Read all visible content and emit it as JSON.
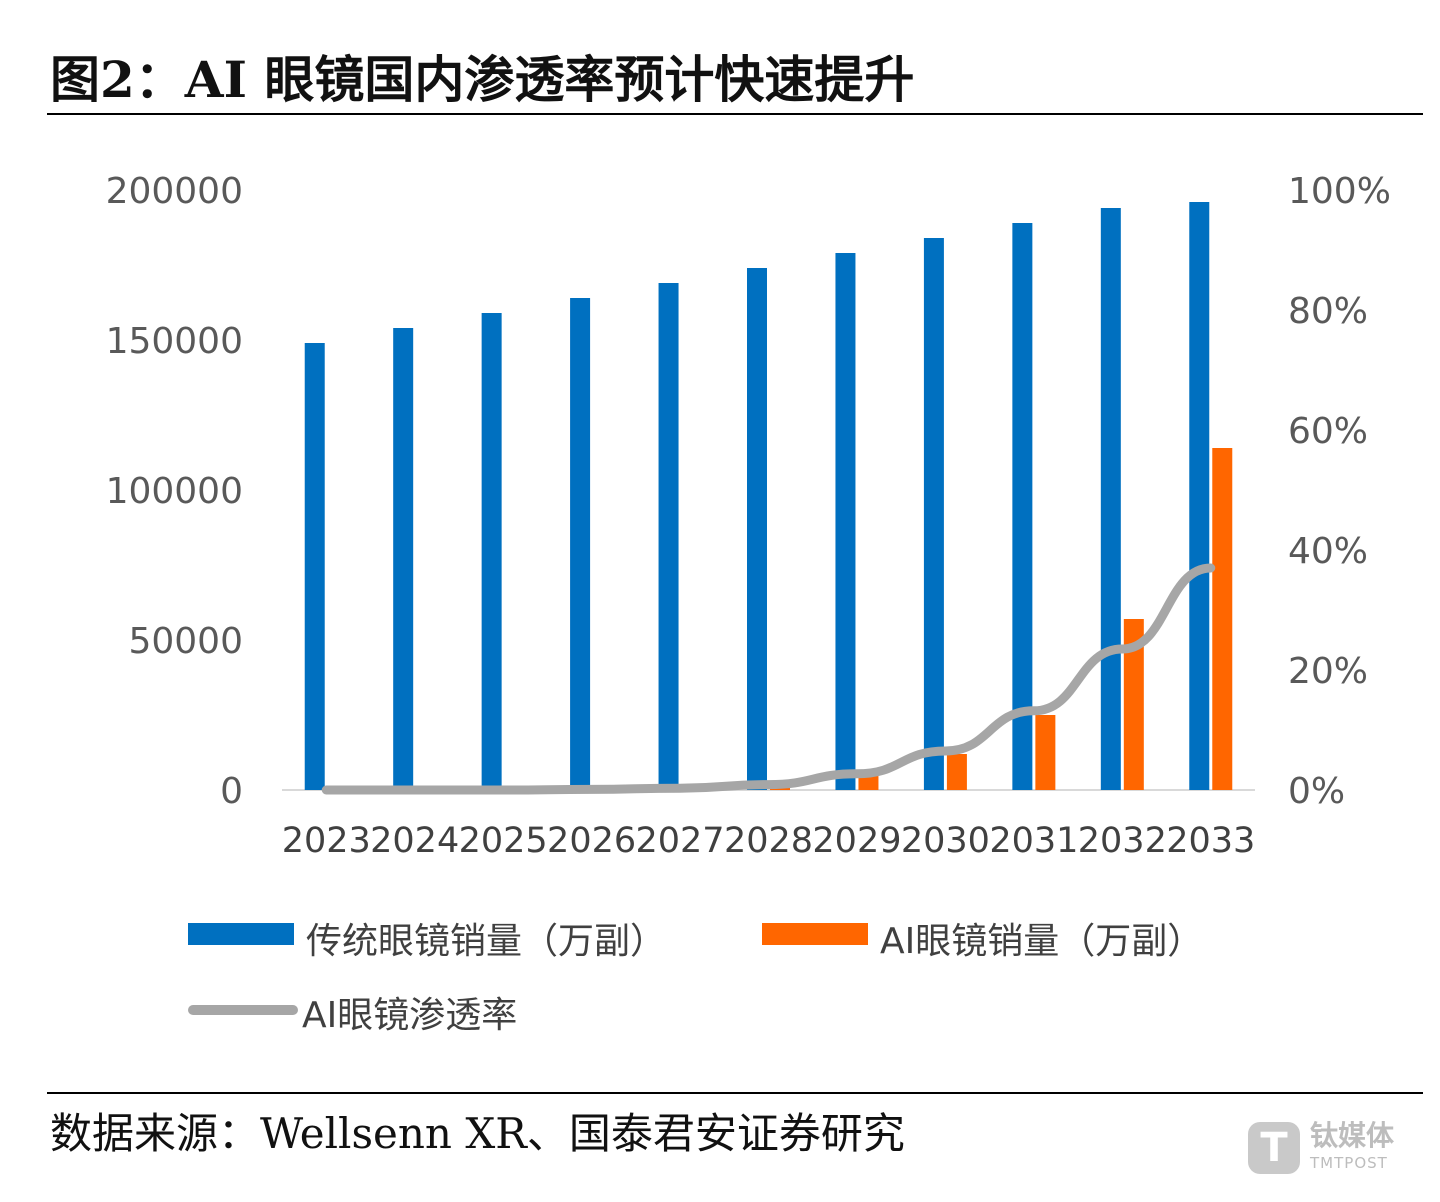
{
  "figure": {
    "title": "图2：AI 眼镜国内渗透率预计快速提升",
    "source": "数据来源：Wellsenn XR、国泰君安证券研究",
    "watermark": {
      "brand": "钛媒体",
      "brand_en": "TMTPOST",
      "logo_letter": "T"
    }
  },
  "colors": {
    "traditional": "#0070C0",
    "ai": "#FF6600",
    "rate": "#A6A6A6"
  },
  "chart_data": {
    "type": "bar",
    "title": "",
    "categories": [
      "2023",
      "2024",
      "2025",
      "2026",
      "2027",
      "2028",
      "2029",
      "2030",
      "2031",
      "2032",
      "2033"
    ],
    "series": [
      {
        "name": "传统眼镜销量（万副）",
        "kind": "bar",
        "axis": "left",
        "values": [
          149000,
          154000,
          159000,
          164000,
          169000,
          174000,
          179000,
          184000,
          189000,
          194000,
          196000
        ]
      },
      {
        "name": "AI眼镜销量（万副）",
        "kind": "bar",
        "axis": "left",
        "values": [
          0,
          0,
          0,
          100,
          500,
          1500,
          5000,
          12000,
          25000,
          57000,
          114000
        ]
      },
      {
        "name": "AI眼镜渗透率",
        "kind": "line",
        "axis": "right",
        "values": [
          0.0,
          0.0,
          0.0,
          0.001,
          0.003,
          0.009,
          0.027,
          0.065,
          0.132,
          0.235,
          0.37
        ]
      }
    ],
    "left_axis": {
      "min": 0,
      "max": 200000,
      "ticks": [
        "0",
        "50000",
        "100000",
        "150000",
        "200000"
      ]
    },
    "right_axis": {
      "min": 0,
      "max": 1,
      "ticks": [
        "0%",
        "20%",
        "40%",
        "60%",
        "80%",
        "100%"
      ]
    },
    "xlabel": "",
    "ylabel": "",
    "legend_position": "bottom"
  }
}
